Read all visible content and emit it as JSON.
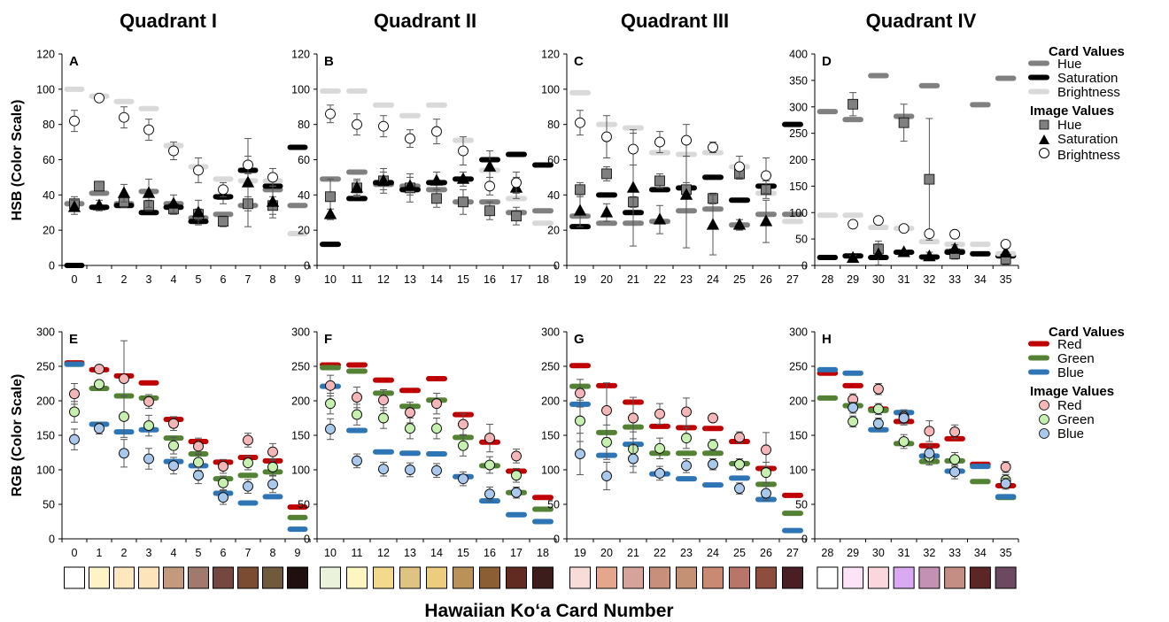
{
  "figure": {
    "quadrant_titles": [
      "Quadrant I",
      "Quadrant II",
      "Quadrant III",
      "Quadrant IV"
    ],
    "x_axis_label": "Hawaiian Ko‘a Card Number",
    "hsb_y_label": "HSB (Color Scale)",
    "rgb_y_label": "RGB (Color Scale)"
  },
  "legend_hsb": {
    "card_heading": "Card Values",
    "card_items": [
      {
        "label": "Hue",
        "color": "#808080"
      },
      {
        "label": "Saturation",
        "color": "#000000"
      },
      {
        "label": "Brightness",
        "color": "#d9d9d9"
      }
    ],
    "image_heading": "Image Values",
    "image_items": [
      {
        "label": "Hue",
        "symbol": "square",
        "color": "#808080"
      },
      {
        "label": "Saturation",
        "symbol": "triangle",
        "color": "#000000"
      },
      {
        "label": "Brightness",
        "symbol": "circle",
        "color": "#ffffff"
      }
    ]
  },
  "legend_rgb": {
    "card_heading": "Card Values",
    "card_items": [
      {
        "label": "Red",
        "color": "#c00000"
      },
      {
        "label": "Green",
        "color": "#548235"
      },
      {
        "label": "Blue",
        "color": "#2e75b6"
      }
    ],
    "image_heading": "Image Values",
    "image_items": [
      {
        "label": "Red",
        "symbol": "circle",
        "color": "#f4b6b6"
      },
      {
        "label": "Green",
        "symbol": "circle",
        "color": "#c6efb0"
      },
      {
        "label": "Blue",
        "symbol": "circle",
        "color": "#a9c8ec"
      }
    ]
  },
  "chart_data": [
    {
      "panel": "A",
      "type": "scatter",
      "metric": "HSB",
      "ylim": [
        0,
        120
      ],
      "yticks": [
        0,
        20,
        40,
        60,
        80,
        100,
        120
      ],
      "x": [
        0,
        1,
        2,
        3,
        4,
        5,
        6,
        7,
        8,
        9
      ],
      "card_values": {
        "hue": [
          35,
          41,
          35,
          42,
          35,
          27,
          29,
          34,
          43,
          34
        ],
        "saturation": [
          0,
          33,
          34,
          30,
          33,
          25,
          39,
          54,
          45,
          67
        ],
        "brightness": [
          100,
          96,
          93,
          89,
          68,
          56,
          49,
          48,
          48,
          18
        ]
      },
      "image_values": {
        "hue": {
          "mean": [
            35,
            45,
            36,
            34,
            32,
            29,
            25,
            35,
            34,
            null
          ],
          "err": [
            4,
            2,
            3,
            3,
            3,
            3,
            3,
            4,
            5,
            null
          ]
        },
        "saturation": {
          "mean": [
            33,
            34,
            41,
            41,
            35,
            30,
            40,
            47,
            36,
            null
          ],
          "err": [
            4,
            3,
            5,
            8,
            5,
            7,
            5,
            25,
            9,
            null
          ]
        },
        "brightness": {
          "mean": [
            82,
            95,
            84,
            77,
            65,
            54,
            43,
            57,
            50,
            null
          ],
          "err": [
            6,
            2,
            6,
            6,
            5,
            7,
            4,
            5,
            5,
            null
          ]
        }
      }
    },
    {
      "panel": "B",
      "type": "scatter",
      "metric": "HSB",
      "ylim": [
        0,
        120
      ],
      "yticks": [
        0,
        20,
        40,
        60,
        80,
        100,
        120
      ],
      "x": [
        10,
        11,
        12,
        13,
        14,
        15,
        16,
        17,
        18
      ],
      "card_values": {
        "hue": [
          49,
          53,
          46,
          45,
          43,
          36,
          36,
          30,
          31
        ],
        "saturation": [
          12,
          38,
          47,
          43,
          47,
          49,
          60,
          63,
          57
        ],
        "brightness": [
          99,
          99,
          91,
          85,
          91,
          71,
          54,
          38,
          24
        ]
      },
      "image_values": {
        "hue": {
          "mean": [
            39,
            44,
            48,
            44,
            38,
            36,
            31,
            28,
            null
          ],
          "err": [
            10,
            4,
            7,
            8,
            5,
            7,
            5,
            5,
            null
          ]
        },
        "saturation": {
          "mean": [
            29,
            44,
            48,
            45,
            48,
            49,
            56,
            44,
            null
          ],
          "err": [
            3,
            5,
            5,
            5,
            5,
            4,
            9,
            6,
            null
          ]
        },
        "brightness": {
          "mean": [
            86,
            80,
            79,
            72,
            76,
            65,
            45,
            47,
            null
          ],
          "err": [
            5,
            6,
            6,
            5,
            7,
            8,
            5,
            6,
            null
          ]
        }
      }
    },
    {
      "panel": "C",
      "type": "scatter",
      "metric": "HSB",
      "ylim": [
        0,
        120
      ],
      "yticks": [
        0,
        20,
        40,
        60,
        80,
        100,
        120
      ],
      "x": [
        19,
        20,
        21,
        22,
        23,
        24,
        25,
        26,
        27
      ],
      "card_values": {
        "hue": [
          28,
          24,
          24,
          25,
          31,
          32,
          23,
          29,
          29
        ],
        "saturation": [
          22,
          40,
          30,
          43,
          44,
          50,
          37,
          45,
          80
        ],
        "brightness": [
          98,
          80,
          78,
          64,
          63,
          64,
          56,
          41,
          25
        ]
      },
      "image_values": {
        "hue": {
          "mean": [
            43,
            52,
            36,
            48,
            43,
            38,
            52,
            43,
            null
          ],
          "err": [
            4,
            4,
            3,
            4,
            4,
            3,
            3,
            5,
            null
          ]
        },
        "saturation": {
          "mean": [
            31,
            30,
            44,
            26,
            40,
            23,
            23,
            25,
            null
          ],
          "err": [
            9,
            5,
            33,
            8,
            30,
            17,
            3,
            12,
            null
          ]
        },
        "brightness": {
          "mean": [
            81,
            73,
            66,
            70,
            71,
            67,
            56,
            51,
            null
          ],
          "err": [
            7,
            12,
            9,
            6,
            9,
            3,
            6,
            10,
            null
          ]
        }
      }
    },
    {
      "panel": "D",
      "type": "scatter",
      "metric": "HSB",
      "ylim": [
        0,
        400
      ],
      "yticks": [
        0,
        50,
        100,
        150,
        200,
        250,
        300,
        350,
        400
      ],
      "x": [
        28,
        29,
        30,
        31,
        32,
        33,
        34,
        35
      ],
      "card_values": {
        "hue": [
          291,
          276,
          359,
          282,
          340,
          27,
          304,
          354
        ],
        "saturation": [
          15,
          18,
          15,
          25,
          16,
          25,
          22,
          18
        ],
        "brightness": [
          95,
          95,
          72,
          70,
          45,
          40,
          40,
          22
        ]
      },
      "image_values": {
        "hue": {
          "mean": [
            null,
            305,
            31,
            270,
            163,
            22,
            null,
            12
          ],
          "err": [
            null,
            22,
            15,
            35,
            115,
            10,
            null,
            10
          ]
        },
        "saturation": {
          "mean": [
            null,
            14,
            21,
            25,
            17,
            31,
            null,
            24
          ],
          "err": [
            null,
            5,
            20,
            4,
            8,
            8,
            null,
            8
          ]
        },
        "brightness": {
          "mean": [
            null,
            78,
            85,
            70,
            60,
            59,
            null,
            40
          ],
          "err": [
            null,
            5,
            5,
            5,
            5,
            5,
            null,
            5
          ]
        }
      }
    },
    {
      "panel": "E",
      "type": "scatter",
      "metric": "RGB",
      "ylim": [
        0,
        300
      ],
      "yticks": [
        0,
        50,
        100,
        150,
        200,
        250,
        300
      ],
      "x": [
        0,
        1,
        2,
        3,
        4,
        5,
        6,
        7,
        8,
        9
      ],
      "card_values": {
        "red": [
          255,
          245,
          236,
          226,
          173,
          141,
          111,
          118,
          113,
          46
        ],
        "green": [
          253,
          218,
          207,
          204,
          146,
          123,
          87,
          92,
          97,
          31
        ],
        "blue": [
          253,
          166,
          155,
          158,
          112,
          106,
          66,
          52,
          61,
          14
        ]
      },
      "image_values": {
        "red": {
          "mean": [
            210,
            246,
            232,
            199,
            167,
            134,
            105,
            143,
            126,
            null
          ],
          "err": [
            15,
            5,
            55,
            10,
            10,
            12,
            10,
            10,
            12,
            null
          ]
        },
        "green": {
          "mean": [
            184,
            224,
            177,
            164,
            135,
            111,
            81,
            110,
            104,
            null
          ],
          "err": [
            15,
            5,
            30,
            15,
            12,
            12,
            10,
            10,
            12,
            null
          ]
        },
        "blue": {
          "mean": [
            144,
            160,
            124,
            116,
            106,
            92,
            60,
            76,
            79,
            null
          ],
          "err": [
            15,
            8,
            20,
            15,
            12,
            12,
            10,
            10,
            12,
            null
          ]
        }
      }
    },
    {
      "panel": "F",
      "type": "scatter",
      "metric": "RGB",
      "ylim": [
        0,
        300
      ],
      "yticks": [
        0,
        50,
        100,
        150,
        200,
        250,
        300
      ],
      "x": [
        10,
        11,
        12,
        13,
        14,
        15,
        16,
        17,
        18
      ],
      "card_values": {
        "red": [
          252,
          252,
          230,
          215,
          232,
          180,
          140,
          98,
          60
        ],
        "green": [
          248,
          243,
          211,
          192,
          201,
          147,
          106,
          67,
          43
        ],
        "blue": [
          221,
          157,
          126,
          124,
          123,
          90,
          55,
          35,
          25
        ]
      },
      "image_values": {
        "red": {
          "mean": [
            222,
            205,
            201,
            183,
            196,
            166,
            146,
            120,
            null
          ],
          "err": [
            15,
            15,
            15,
            15,
            15,
            15,
            20,
            10,
            null
          ]
        },
        "green": {
          "mean": [
            196,
            180,
            175,
            160,
            160,
            135,
            107,
            92,
            null
          ],
          "err": [
            15,
            15,
            15,
            15,
            15,
            15,
            12,
            10,
            null
          ]
        },
        "blue": {
          "mean": [
            159,
            113,
            101,
            100,
            99,
            87,
            65,
            67,
            null
          ],
          "err": [
            15,
            10,
            10,
            10,
            10,
            10,
            10,
            8,
            null
          ]
        }
      }
    },
    {
      "panel": "G",
      "type": "scatter",
      "metric": "RGB",
      "ylim": [
        0,
        300
      ],
      "yticks": [
        0,
        50,
        100,
        150,
        200,
        250,
        300
      ],
      "x": [
        19,
        20,
        21,
        22,
        23,
        24,
        25,
        26,
        27
      ],
      "card_values": {
        "red": [
          251,
          222,
          198,
          163,
          161,
          160,
          141,
          102,
          63
        ],
        "green": [
          221,
          154,
          162,
          124,
          124,
          124,
          109,
          79,
          37
        ],
        "blue": [
          195,
          121,
          137,
          94,
          87,
          78,
          88,
          57,
          12
        ]
      },
      "image_values": {
        "red": {
          "mean": [
            211,
            186,
            175,
            181,
            184,
            175,
            147,
            129,
            null
          ],
          "err": [
            20,
            40,
            30,
            15,
            20,
            5,
            8,
            25,
            null
          ]
        },
        "green": {
          "mean": [
            171,
            140,
            130,
            131,
            146,
            136,
            108,
            96,
            null
          ],
          "err": [
            30,
            25,
            25,
            15,
            15,
            8,
            8,
            15,
            null
          ]
        },
        "blue": {
          "mean": [
            123,
            91,
            116,
            95,
            106,
            108,
            73,
            66,
            null
          ],
          "err": [
            30,
            20,
            20,
            10,
            10,
            8,
            8,
            10,
            null
          ]
        }
      }
    },
    {
      "panel": "H",
      "type": "scatter",
      "metric": "RGB",
      "ylim": [
        0,
        300
      ],
      "yticks": [
        0,
        50,
        100,
        150,
        200,
        250,
        300
      ],
      "x": [
        28,
        29,
        30,
        31,
        32,
        33,
        34,
        35
      ],
      "card_values": {
        "red": [
          240,
          222,
          188,
          170,
          135,
          145,
          108,
          77
        ],
        "green": [
          204,
          193,
          186,
          138,
          112,
          113,
          83,
          60
        ],
        "blue": [
          245,
          240,
          158,
          183,
          120,
          98,
          105,
          61
        ]
      },
      "image_values": {
        "red": {
          "mean": [
            null,
            202,
            217,
            177,
            156,
            155,
            null,
            104
          ],
          "err": [
            null,
            8,
            8,
            10,
            15,
            10,
            null,
            8
          ]
        },
        "green": {
          "mean": [
            null,
            170,
            188,
            141,
            119,
            115,
            null,
            85
          ],
          "err": [
            null,
            8,
            8,
            10,
            12,
            10,
            null,
            8
          ]
        },
        "blue": {
          "mean": [
            null,
            190,
            167,
            175,
            124,
            97,
            null,
            80
          ],
          "err": [
            null,
            8,
            8,
            10,
            12,
            10,
            null,
            8
          ]
        }
      }
    }
  ],
  "swatches": [
    {
      "colors": [
        "#ffffff",
        "#fcf3c6",
        "#fde7be",
        "#fde4bb",
        "#c29a7e",
        "#a07b6d",
        "#75483f",
        "#7c4c32",
        "#6f5a3c",
        "#1f0f0f"
      ]
    },
    {
      "colors": [
        "#ebf2dc",
        "#fcf6c2",
        "#f2d98b",
        "#dec382",
        "#eccd7f",
        "#b99159",
        "#8b5e33",
        "#612b22",
        "#3c1d1b"
      ]
    },
    {
      "colors": [
        "#f7dcd7",
        "#e4a68d",
        "#d5a39c",
        "#c98f7d",
        "#c59175",
        "#c98972",
        "#b8766b",
        "#8d4e3e",
        "#4a1e25"
      ]
    },
    {
      "colors": [
        "#ffffff",
        "#fce3f6",
        "#f9d7dc",
        "#d9aaf1",
        "#c391b3",
        "#c48e84",
        "#5c2626",
        "#6c4960"
      ]
    }
  ]
}
